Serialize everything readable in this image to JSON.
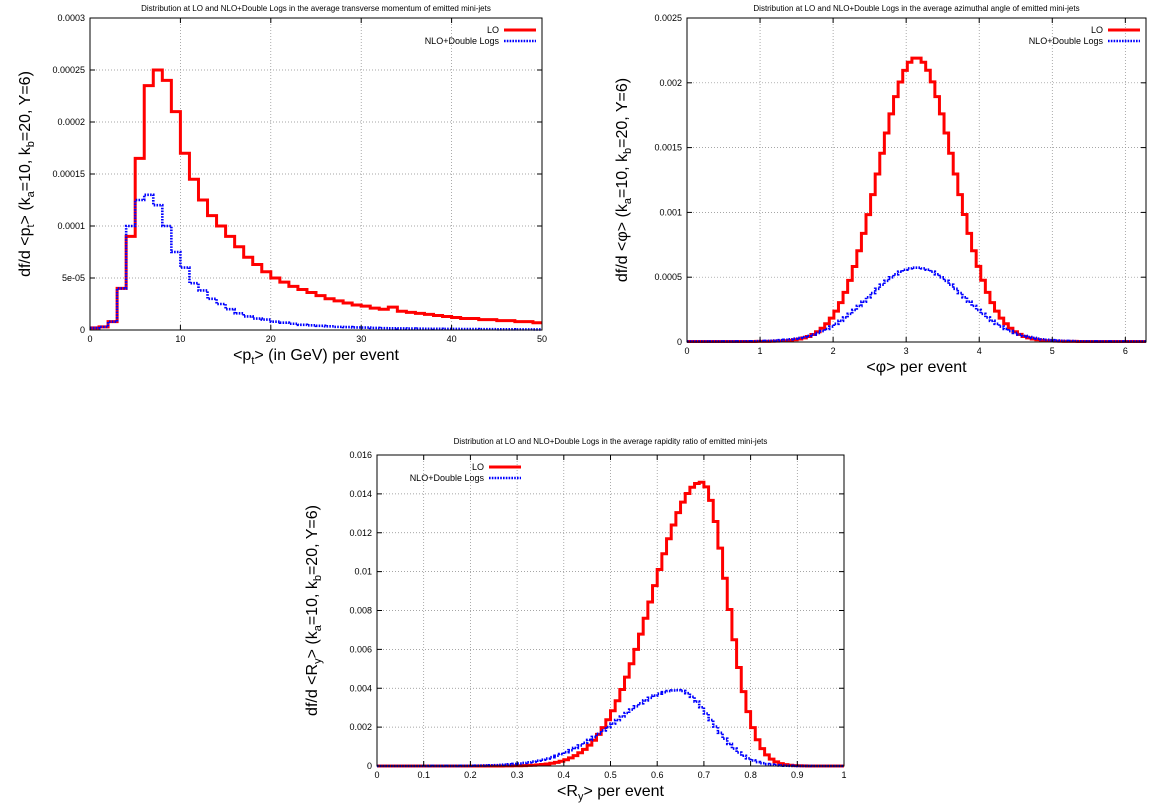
{
  "colors": {
    "lo": "#ff0000",
    "nlo": "#0000ff",
    "grid": "#888888",
    "frame": "#000000"
  },
  "chart_data": [
    {
      "type": "line",
      "step": true,
      "title": "Distribution at LO and NLO+Double Logs in the average transverse momentum of emitted mini-jets",
      "xlabel": {
        "pre": "<p",
        "sub": "t",
        "post": "> (in GeV) per event"
      },
      "ylabel": {
        "parts": [
          "df/d <p",
          "t",
          "> (k",
          "a",
          "=10, k",
          "b",
          "=20, Y=6)"
        ]
      },
      "xlim": [
        0,
        50
      ],
      "ylim": [
        0,
        0.0003
      ],
      "xticks": [
        0,
        10,
        20,
        30,
        40,
        50
      ],
      "xtick_labels": [
        "0",
        "10",
        "20",
        "30",
        "40",
        "50"
      ],
      "yticks": [
        0,
        5e-05,
        0.0001,
        0.00015,
        0.0002,
        0.00025,
        0.0003
      ],
      "ytick_labels": [
        "0",
        "5e-05",
        "0.0001",
        "0.00015",
        "0.0002",
        "0.00025",
        "0.0003"
      ],
      "grid": true,
      "legend_position": "top-right",
      "series": [
        {
          "name": "LO",
          "x": [
            0,
            1,
            2,
            3,
            4,
            5,
            6,
            7,
            8,
            9,
            10,
            11,
            12,
            13,
            14,
            15,
            16,
            17,
            18,
            19,
            20,
            21,
            22,
            23,
            24,
            25,
            26,
            27,
            28,
            29,
            30,
            31,
            32,
            33,
            34,
            35,
            36,
            37,
            38,
            39,
            40,
            41,
            42,
            43,
            44,
            45,
            46,
            47,
            48,
            49
          ],
          "values": [
            2e-06,
            3e-06,
            8e-06,
            4e-05,
            9e-05,
            0.000165,
            0.000235,
            0.00025,
            0.00024,
            0.00021,
            0.00017,
            0.000145,
            0.000125,
            0.00011,
            0.0001,
            9e-05,
            8e-05,
            7e-05,
            6.3e-05,
            5.6e-05,
            5e-05,
            4.6e-05,
            4.2e-05,
            3.9e-05,
            3.6e-05,
            3.3e-05,
            3e-05,
            2.8e-05,
            2.6e-05,
            2.4e-05,
            2.3e-05,
            2.1e-05,
            2e-05,
            2.2e-05,
            1.8e-05,
            1.7e-05,
            1.6e-05,
            1.5e-05,
            1.4e-05,
            1.3e-05,
            1.2e-05,
            1.1e-05,
            1.1e-05,
            1e-05,
            1e-05,
            9e-06,
            9e-06,
            8e-06,
            8e-06,
            7e-06
          ]
        },
        {
          "name": "NLO+Double Logs",
          "x": [
            0,
            1,
            2,
            3,
            4,
            5,
            6,
            7,
            8,
            9,
            10,
            11,
            12,
            13,
            14,
            15,
            16,
            17,
            18,
            19,
            20,
            21,
            22,
            23,
            24,
            25,
            26,
            27,
            28,
            29,
            30,
            31,
            32,
            33,
            34,
            35,
            36,
            37,
            38,
            39,
            40,
            41,
            42,
            43,
            44,
            45,
            46,
            47,
            48,
            49
          ],
          "values": [
            2e-06,
            3e-06,
            8e-06,
            4e-05,
            0.0001,
            0.000125,
            0.00013,
            0.00012,
            0.0001,
            7.5e-05,
            6e-05,
            4.5e-05,
            3.8e-05,
            3e-05,
            2.5e-05,
            2e-05,
            1.6e-05,
            1.3e-05,
            1.1e-05,
            1e-05,
            8e-06,
            7e-06,
            6e-06,
            5e-06,
            4.5e-06,
            4e-06,
            3.5e-06,
            3e-06,
            2.8e-06,
            2.5e-06,
            2.3e-06,
            2e-06,
            1.8e-06,
            1.6e-06,
            1.5e-06,
            1.4e-06,
            1.3e-06,
            1.2e-06,
            1.1e-06,
            1e-06,
            1e-06,
            9e-07,
            9e-07,
            8e-07,
            8e-07,
            7e-07,
            7e-07,
            6e-07,
            6e-07,
            5e-07
          ]
        }
      ]
    },
    {
      "type": "line",
      "step": true,
      "title": "Distribution at LO and NLO+Double Logs in the average azimuthal angle of emitted mini-jets",
      "xlabel": {
        "pre": "<φ> per event",
        "sub": "",
        "post": ""
      },
      "ylabel": {
        "parts": [
          "df/d <φ> (k",
          "a",
          "=10, k",
          "b",
          "=20, Y=6)"
        ]
      },
      "xlim": [
        0,
        6.283
      ],
      "ylim": [
        0,
        0.0025
      ],
      "xticks": [
        0,
        1,
        2,
        3,
        4,
        5,
        6
      ],
      "xtick_labels": [
        "0",
        "1",
        "2",
        "3",
        "4",
        "5",
        "6"
      ],
      "yticks": [
        0,
        0.0005,
        0.001,
        0.0015,
        0.002,
        0.0025
      ],
      "ytick_labels": [
        "0",
        "0.0005",
        "0.001",
        "0.0015",
        "0.002",
        "0.0025"
      ],
      "grid": true,
      "legend_position": "top-right",
      "series": [
        {
          "name": "LO",
          "model": {
            "kind": "gauss",
            "mu": 3.14159,
            "sigma": 0.52,
            "peak": 0.00219,
            "base": 4e-06,
            "xmin": 0,
            "xmax": 6.283,
            "bins": 100
          }
        },
        {
          "name": "NLO+Double Logs",
          "model": {
            "kind": "gauss",
            "mu": 3.14159,
            "sigma": 0.65,
            "peak": 0.00057,
            "base": 4e-06,
            "xmin": 0,
            "xmax": 6.283,
            "bins": 100
          }
        }
      ]
    },
    {
      "type": "line",
      "step": true,
      "title": "Distribution at LO and NLO+Double Logs in the average rapidity ratio of emitted mini-jets",
      "xlabel": {
        "pre": "<R",
        "sub": "y",
        "post": "> per event"
      },
      "ylabel": {
        "parts": [
          "df/d <R",
          "y",
          "> (k",
          "a",
          "=10, k",
          "b",
          "=20, Y=6)"
        ]
      },
      "xlim": [
        0,
        1
      ],
      "ylim": [
        0,
        0.016
      ],
      "xticks": [
        0,
        0.1,
        0.2,
        0.3,
        0.4,
        0.5,
        0.6,
        0.7,
        0.8,
        0.9,
        1
      ],
      "xtick_labels": [
        "0",
        "0.1",
        "0.2",
        "0.3",
        "0.4",
        "0.5",
        "0.6",
        "0.7",
        "0.8",
        "0.9",
        "1"
      ],
      "yticks": [
        0,
        0.002,
        0.004,
        0.006,
        0.008,
        0.01,
        0.012,
        0.014,
        0.016
      ],
      "ytick_labels": [
        "0",
        "0.002",
        "0.004",
        "0.006",
        "0.008",
        "0.01",
        "0.012",
        "0.014",
        "0.016"
      ],
      "grid": true,
      "legend_position": "top-left",
      "series": [
        {
          "name": "LO",
          "model": {
            "kind": "skew",
            "mu": 0.695,
            "sl": 0.105,
            "sr": 0.055,
            "peak": 0.0146,
            "base": 0,
            "xmin": 0,
            "xmax": 1,
            "bins": 100
          }
        },
        {
          "name": "NLO+Double Logs",
          "model": {
            "kind": "skew",
            "mu": 0.645,
            "sl": 0.13,
            "sr": 0.07,
            "peak": 0.0039,
            "base": 0,
            "xmin": 0,
            "xmax": 1,
            "bins": 100
          }
        }
      ]
    }
  ]
}
